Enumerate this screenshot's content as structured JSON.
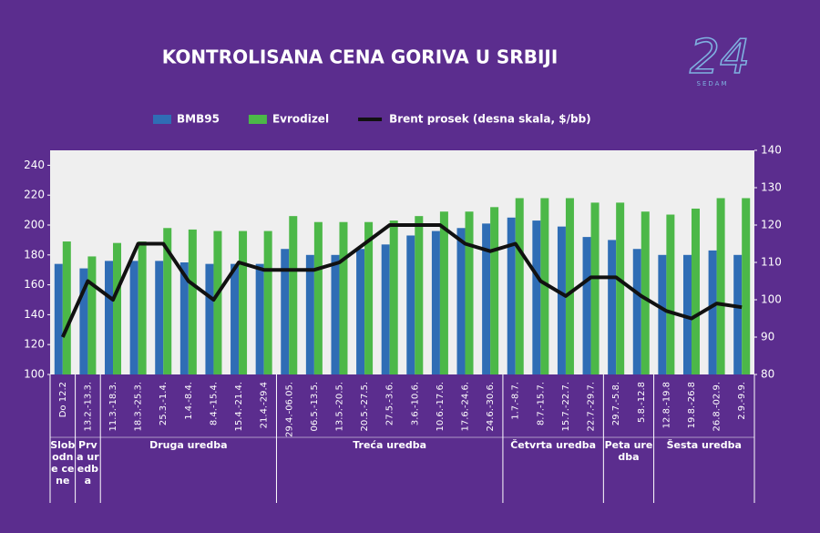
{
  "logo": {
    "number": "24",
    "label": "SEDAM"
  },
  "chart_data": {
    "type": "bar",
    "title": "KONTROLISANA CENA GORIVA U SRBIJI",
    "categories": [
      "Do 12.2",
      "13.2.-13.3.",
      "11.3.-18.3.",
      "18.3.-25.3.",
      "25.3.-1.4.",
      "1.4.-8.4.",
      "8.4.-15.4.",
      "15.4.-21.4.",
      "21.4.-29.4",
      "29.4.-06.05.",
      "06.5.-13.5.",
      "13.5.-20.5.",
      "20.5.-27.5.",
      "27.5.-3.6.",
      "3.6.-10.6.",
      "10.6.-17.6.",
      "17.6.-24.6.",
      "24.6.-30.6.",
      "1.7.-8.7.",
      "8.7.-15.7.",
      "15.7.-22.7.",
      "22.7.-29.7.",
      "29.7.-5.8.",
      "5.8.-12.8",
      "12.8.-19.8",
      "19.8.-26.8",
      "26.8.-02.9.",
      "2.9.-9.9."
    ],
    "groups": [
      {
        "label": "Slobodne cene",
        "count": 1
      },
      {
        "label": "Prva uredba",
        "count": 1
      },
      {
        "label": "Druga uredba",
        "count": 7
      },
      {
        "label": "Treća uredba",
        "count": 9
      },
      {
        "label": "Četvrta uredba",
        "count": 4
      },
      {
        "label": "Peta uredba",
        "count": 2
      },
      {
        "label": "Šesta uredba",
        "count": 4
      }
    ],
    "series": [
      {
        "name": "BMB95",
        "type": "bar",
        "color": "#2f6db5",
        "values": [
          174,
          171,
          176,
          176,
          176,
          175,
          174,
          174,
          174,
          184,
          180,
          180,
          184,
          187,
          193,
          196,
          198,
          201,
          205,
          203,
          199,
          192,
          190,
          184,
          180,
          180,
          183,
          180
        ]
      },
      {
        "name": "Evrodizel",
        "type": "bar",
        "color": "#4cb848",
        "values": [
          189,
          179,
          188,
          189,
          198,
          197,
          196,
          196,
          196,
          206,
          202,
          202,
          202,
          203,
          206,
          209,
          209,
          212,
          218,
          218,
          218,
          215,
          215,
          209,
          207,
          211,
          218,
          218
        ]
      },
      {
        "name": "Brent prosek  (desna skala, $/bb)",
        "type": "line",
        "axis": "y2",
        "color": "#111111",
        "values": [
          90,
          105,
          100,
          115,
          115,
          105,
          100,
          110,
          108,
          108,
          108,
          110,
          115,
          120,
          120,
          120,
          115,
          113,
          115,
          105,
          101,
          106,
          106,
          101,
          97,
          95,
          99,
          98
        ]
      }
    ],
    "ylim": [
      100,
      250
    ],
    "yticks": [
      100,
      120,
      140,
      160,
      180,
      200,
      220,
      240
    ],
    "y2lim": [
      80,
      140
    ],
    "y2ticks": [
      80,
      90,
      100,
      110,
      120,
      130,
      140
    ],
    "legend": "top"
  }
}
